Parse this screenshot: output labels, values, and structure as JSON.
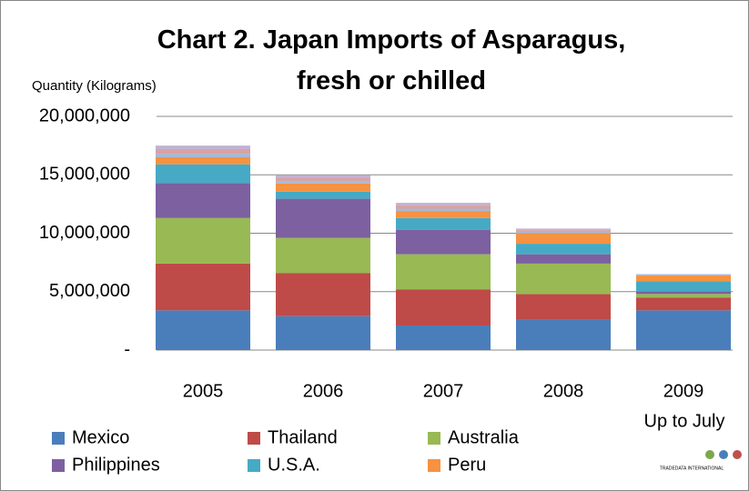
{
  "chart_data": {
    "type": "stacked_bar",
    "title": "Chart 2. Japan Imports of Asparagus, fresh or chilled",
    "y_label": "Quantity (Kilograms)",
    "categories": [
      "2005",
      "2006",
      "2007",
      "2008",
      "2009"
    ],
    "annotation": "Up to July",
    "logo_text": "TRADEDATA INTERNATIONAL",
    "ylim": [
      0,
      20000000
    ],
    "yticks": [
      {
        "value": 0,
        "label": "-"
      },
      {
        "value": 5000000,
        "label": "5,000,000"
      },
      {
        "value": 10000000,
        "label": "10,000,000"
      },
      {
        "value": 15000000,
        "label": "15,000,000"
      },
      {
        "value": 20000000,
        "label": "20,000,000"
      }
    ],
    "grid": true,
    "series": [
      {
        "name": "Mexico",
        "color": "#4a7ebb",
        "values": [
          3400000,
          2900000,
          2100000,
          2600000,
          3400000
        ]
      },
      {
        "name": "Thailand",
        "color": "#be4b48",
        "values": [
          4000000,
          3700000,
          3100000,
          2200000,
          1100000
        ]
      },
      {
        "name": "Australia",
        "color": "#98b954",
        "values": [
          3900000,
          3000000,
          3000000,
          2600000,
          300000
        ]
      },
      {
        "name": "Philippines",
        "color": "#7d60a0",
        "values": [
          3000000,
          3350000,
          2100000,
          800000,
          200000
        ]
      },
      {
        "name": "U.S.A.",
        "color": "#46aac5",
        "values": [
          1600000,
          600000,
          1000000,
          900000,
          900000
        ]
      },
      {
        "name": "Peru",
        "color": "#f69240",
        "values": [
          600000,
          700000,
          600000,
          900000,
          500000
        ]
      },
      {
        "color": "#a5b9d8",
        "values": [
          300000,
          200000,
          200000,
          200000,
          100000
        ]
      },
      {
        "color": "#d9a3a2",
        "values": [
          400000,
          300000,
          300000,
          100000,
          0
        ]
      },
      {
        "color": "#c0b2d4",
        "values": [
          300000,
          200000,
          200000,
          100000,
          0
        ]
      }
    ]
  }
}
